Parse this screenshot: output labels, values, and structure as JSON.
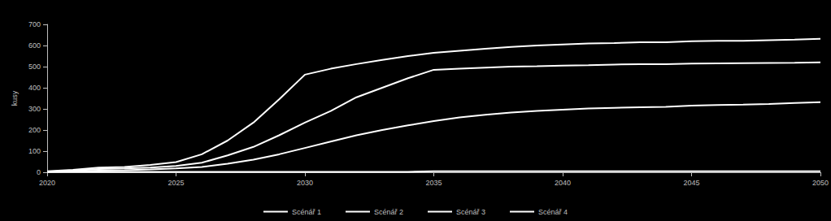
{
  "chart_data": {
    "type": "line",
    "y_label": "kusy",
    "x": [
      2020,
      2021,
      2022,
      2023,
      2024,
      2025,
      2026,
      2027,
      2028,
      2029,
      2030,
      2031,
      2032,
      2033,
      2034,
      2035,
      2036,
      2037,
      2038,
      2039,
      2040,
      2041,
      2042,
      2043,
      2044,
      2045,
      2046,
      2047,
      2048,
      2049,
      2050
    ],
    "series": [
      {
        "name": "Scénář 1",
        "color": "#ffffff",
        "values": [
          5,
          12,
          22,
          25,
          35,
          48,
          85,
          150,
          235,
          345,
          462,
          490,
          512,
          532,
          550,
          565,
          575,
          585,
          593,
          600,
          605,
          610,
          612,
          615,
          615,
          620,
          622,
          622,
          625,
          628,
          632
        ]
      },
      {
        "name": "Scénář 2",
        "color": "#ffffff",
        "values": [
          3,
          8,
          15,
          18,
          22,
          30,
          45,
          80,
          120,
          175,
          235,
          290,
          355,
          400,
          445,
          485,
          490,
          495,
          500,
          502,
          505,
          507,
          510,
          512,
          512,
          514,
          515,
          516,
          517,
          518,
          520
        ]
      },
      {
        "name": "Scénář 3",
        "color": "#ffffff",
        "values": [
          2,
          5,
          8,
          10,
          13,
          18,
          25,
          40,
          60,
          85,
          115,
          145,
          175,
          200,
          222,
          242,
          260,
          272,
          283,
          290,
          296,
          302,
          305,
          308,
          310,
          315,
          318,
          320,
          323,
          328,
          332
        ]
      },
      {
        "name": "Scénář 4",
        "color": "#ffffff",
        "values": [
          2,
          2,
          2,
          2,
          2,
          2,
          2,
          2,
          2,
          2,
          2,
          2,
          2,
          2,
          2,
          5,
          5,
          5,
          5,
          5,
          5,
          5,
          5,
          5,
          5,
          5,
          5,
          5,
          5,
          5,
          5
        ]
      }
    ],
    "xlim": [
      2020,
      2050
    ],
    "xticks": [
      2020,
      2025,
      2030,
      2035,
      2040,
      2045,
      2050
    ],
    "ylim": [
      0,
      700
    ],
    "yticks": [
      0,
      100,
      200,
      300,
      400,
      500,
      600,
      700
    ],
    "grid": false,
    "legend": "bottom"
  }
}
